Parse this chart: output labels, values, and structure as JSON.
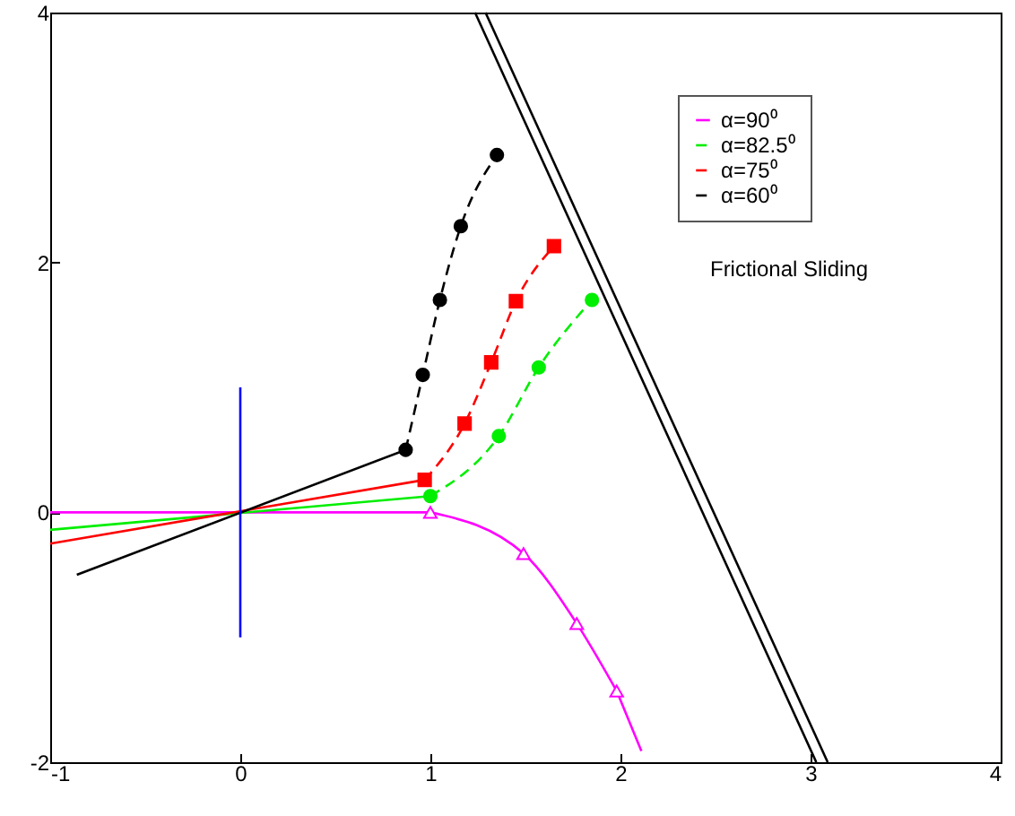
{
  "chart_data": {
    "type": "line",
    "xlim": [
      -1,
      4
    ],
    "ylim": [
      -2,
      4
    ],
    "xticks": [
      -1,
      0,
      1,
      2,
      3,
      4
    ],
    "yticks": [
      -2,
      0,
      2,
      4
    ],
    "grid": false,
    "legend": "top right",
    "annotations": [
      "Frictional Sliding"
    ],
    "series": [
      {
        "name": "α=90⁰",
        "color": "#ff00ff",
        "marker": "triangle",
        "line_style": "solid",
        "x": [
          1,
          1.49,
          1.77,
          1.98
        ],
        "values": [
          0,
          -0.33,
          -0.89,
          -1.43
        ]
      },
      {
        "name": "α=82.5⁰",
        "color": "#00ee00",
        "marker": "circle",
        "line_style": "dashed",
        "x": [
          1,
          1.36,
          1.57,
          1.85
        ],
        "values": [
          0.13,
          0.61,
          1.16,
          1.7
        ]
      },
      {
        "name": "α=75⁰",
        "color": "#ff0000",
        "marker": "square",
        "line_style": "dashed",
        "x": [
          0.97,
          1.18,
          1.32,
          1.45,
          1.65
        ],
        "values": [
          0.26,
          0.71,
          1.2,
          1.69,
          2.13
        ]
      },
      {
        "name": "α=60⁰",
        "color": "#000000",
        "marker": "circle",
        "line_style": "dashed",
        "x": [
          0.87,
          0.96,
          1.05,
          1.16,
          1.35
        ],
        "values": [
          0.5,
          1.1,
          1.7,
          2.29,
          2.86
        ]
      },
      {
        "color": "#ff00ff",
        "marker": "none",
        "line_style": "solid",
        "x": [
          -1,
          1
        ],
        "values": [
          0,
          0
        ]
      },
      {
        "color": "#ff00ff",
        "marker": "none",
        "line_style": "solid",
        "x": [
          1.98,
          2.11
        ],
        "values": [
          -1.43,
          -1.91
        ]
      },
      {
        "color": "#00ee00",
        "marker": "none",
        "line_style": "solid",
        "x": [
          -1,
          1
        ],
        "values": [
          -0.14,
          0.13
        ]
      },
      {
        "color": "#ff0000",
        "marker": "none",
        "line_style": "solid",
        "x": [
          -1,
          0.97
        ],
        "values": [
          -0.25,
          0.26
        ]
      },
      {
        "color": "#000000",
        "marker": "none",
        "line_style": "solid",
        "x": [
          -0.86,
          0.87
        ],
        "values": [
          -0.5,
          0.5
        ]
      },
      {
        "color": "#0000ff",
        "marker": "none",
        "line_style": "solid",
        "x": [
          0,
          0
        ],
        "values": [
          -1,
          1
        ]
      },
      {
        "color": "#000000",
        "marker": "none",
        "line_style": "solid",
        "x": [
          1.235,
          3.03
        ],
        "values": [
          4,
          -2
        ]
      },
      {
        "color": "#000000",
        "marker": "none",
        "line_style": "solid",
        "x": [
          1.29,
          3.09
        ],
        "values": [
          4,
          -2
        ]
      }
    ]
  }
}
